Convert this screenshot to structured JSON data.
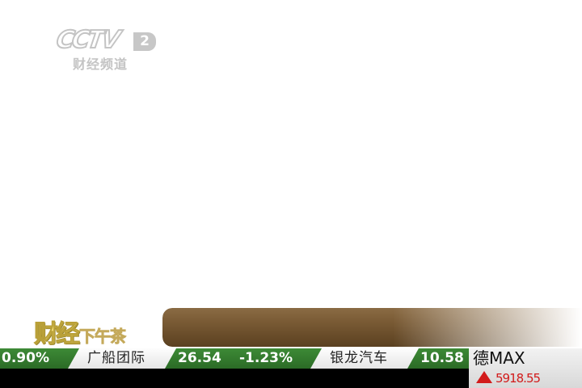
{
  "channel": {
    "logo_text": "CCTV",
    "channel_number": "2",
    "channel_name": "财经频道"
  },
  "program": {
    "title_main": "财经",
    "title_sub": "下午茶"
  },
  "ticker": {
    "items": [
      {
        "type": "change",
        "text": "0.90%"
      },
      {
        "type": "name",
        "text": "广船团际"
      },
      {
        "type": "price",
        "text": "26.54"
      },
      {
        "type": "change",
        "text": "-1.23%"
      },
      {
        "type": "name",
        "text": "银龙汽车"
      },
      {
        "type": "price",
        "text": "10.58"
      }
    ]
  },
  "index_panel": {
    "name": "德MAX",
    "value": "5918.55",
    "direction": "up",
    "up_color": "#d21b1b"
  },
  "colors": {
    "ticker_green": "#2f7a2a",
    "title_bar_brown": "#7a5b35"
  }
}
